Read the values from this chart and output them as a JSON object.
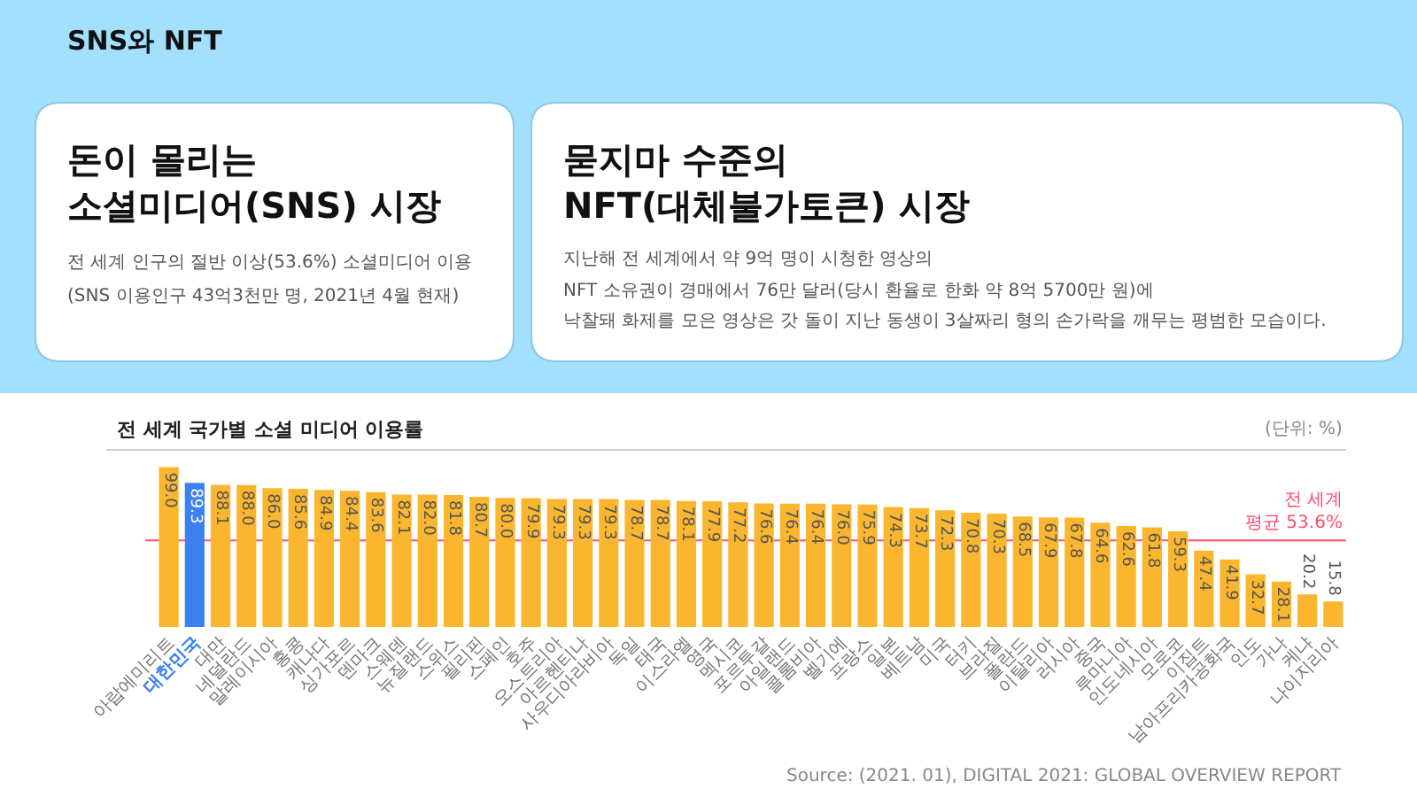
{
  "chart_data": {
    "type": "bar",
    "title": "전 세계 국가별 소셜 미디어 이용률",
    "categories": [
      "아랍에미리트",
      "대한민국",
      "대만",
      "네덜란드",
      "말레이시아",
      "홍콩",
      "캐나다",
      "싱가포르",
      "덴마크",
      "스웨덴",
      "뉴질랜드",
      "스위스",
      "필리핀",
      "스페인",
      "호주",
      "오스트리아",
      "아르헨티나",
      "사우디아라비아",
      "독일",
      "태국",
      "이스라엘",
      "영국",
      "멕시코",
      "포르투갈",
      "아일랜드",
      "콜롬비아",
      "벨기에",
      "프랑스",
      "일본",
      "베트남",
      "미국",
      "터키",
      "브라질",
      "폴란드",
      "이탈리아",
      "러시아",
      "중국",
      "루마니아",
      "인도네시아",
      "모로코",
      "이집트",
      "남아프리카공화국",
      "인도",
      "가나",
      "케냐",
      "나이지리아"
    ],
    "values": [
      99.0,
      89.3,
      88.1,
      88.0,
      86.0,
      85.6,
      84.9,
      84.4,
      83.6,
      82.1,
      82.0,
      81.8,
      80.7,
      80.0,
      79.9,
      79.3,
      79.3,
      79.3,
      78.7,
      78.7,
      78.1,
      77.9,
      77.2,
      76.6,
      76.4,
      76.4,
      76.0,
      75.9,
      74.3,
      73.7,
      72.3,
      70.8,
      70.3,
      68.5,
      67.9,
      67.8,
      64.6,
      62.6,
      61.8,
      59.3,
      47.4,
      41.9,
      32.7,
      28.1,
      20.2,
      15.8
    ],
    "value_labels": [
      "99.0",
      "89.3",
      "88.1",
      "88.0",
      "86.0",
      "85.6",
      "84.9",
      "84.4",
      "83.6",
      "82.1",
      "82.0",
      "81.8",
      "80.7",
      "80.0",
      "79.9",
      "79.3",
      "79.3",
      "79.3",
      "78.7",
      "78.7",
      "78.1",
      "77.9",
      "77.2",
      "76.6",
      "76.4",
      "76.4",
      "76.0",
      "75.9",
      "74.3",
      "73.7",
      "72.3",
      "70.8",
      "70.3",
      "68.5",
      "67.9",
      "67.8",
      "64.6",
      "62.6",
      "61.8",
      "59.3",
      "47.4",
      "41.9",
      "32.7",
      "28.1",
      "20.2",
      "15.8"
    ],
    "colors": [
      "#fbb62f",
      "#3b82f0",
      "#fbb62f",
      "#fbb62f",
      "#fbb62f",
      "#fbb62f",
      "#fbb62f",
      "#fbb62f",
      "#fbb62f",
      "#fbb62f",
      "#fbb62f",
      "#fbb62f",
      "#fbb62f",
      "#fbb62f",
      "#fbb62f",
      "#fbb62f",
      "#fbb62f",
      "#fbb62f",
      "#fbb62f",
      "#fbb62f",
      "#fbb62f",
      "#fbb62f",
      "#fbb62f",
      "#fbb62f",
      "#fbb62f",
      "#fbb62f",
      "#fbb62f",
      "#fbb62f",
      "#fbb62f",
      "#fbb62f",
      "#fbb62f",
      "#fbb62f",
      "#fbb62f",
      "#fbb62f",
      "#fbb62f",
      "#fbb62f",
      "#fbb62f",
      "#fbb62f",
      "#fbb62f",
      "#fbb62f",
      "#fbb62f",
      "#fbb62f",
      "#fbb62f",
      "#fbb62f",
      "#fbb62f",
      "#fbb62f"
    ],
    "ref_lines": [
      {
        "axis": "y",
        "value": 53.6,
        "label": "전 세계\n평균 53.6%",
        "color": "#ff4d6d"
      }
    ],
    "annotations": [
      "SNS와 NFT",
      "돈이 몰리는\n소셜미디어(SNS) 시장",
      "전 세계 인구의 절반 이상(53.6%) 소셜미디어 이용",
      "(SNS 이용인구 43억3천만 명, 2021년 4월 현재)",
      "묻지마 수준의\nNFT(대체불가토큰) 시장",
      "지난해 전 세계에서 약 9억 명이 시청한 영상의",
      "NFT 소유권이 경매에서 76만 달러(당시 환율로 한화 약 8억 5700만 원)에",
      "낙찰돼 화제를 모은 영상은 갓 돌이 지난 동생이 3살짜리 형의 손가락을 깨무는 평범한 모습이다.",
      "(단위: %)",
      "Source: (2021. 01), DIGITAL 2021: GLOBAL OVERVIEW REPORT"
    ]
  }
}
